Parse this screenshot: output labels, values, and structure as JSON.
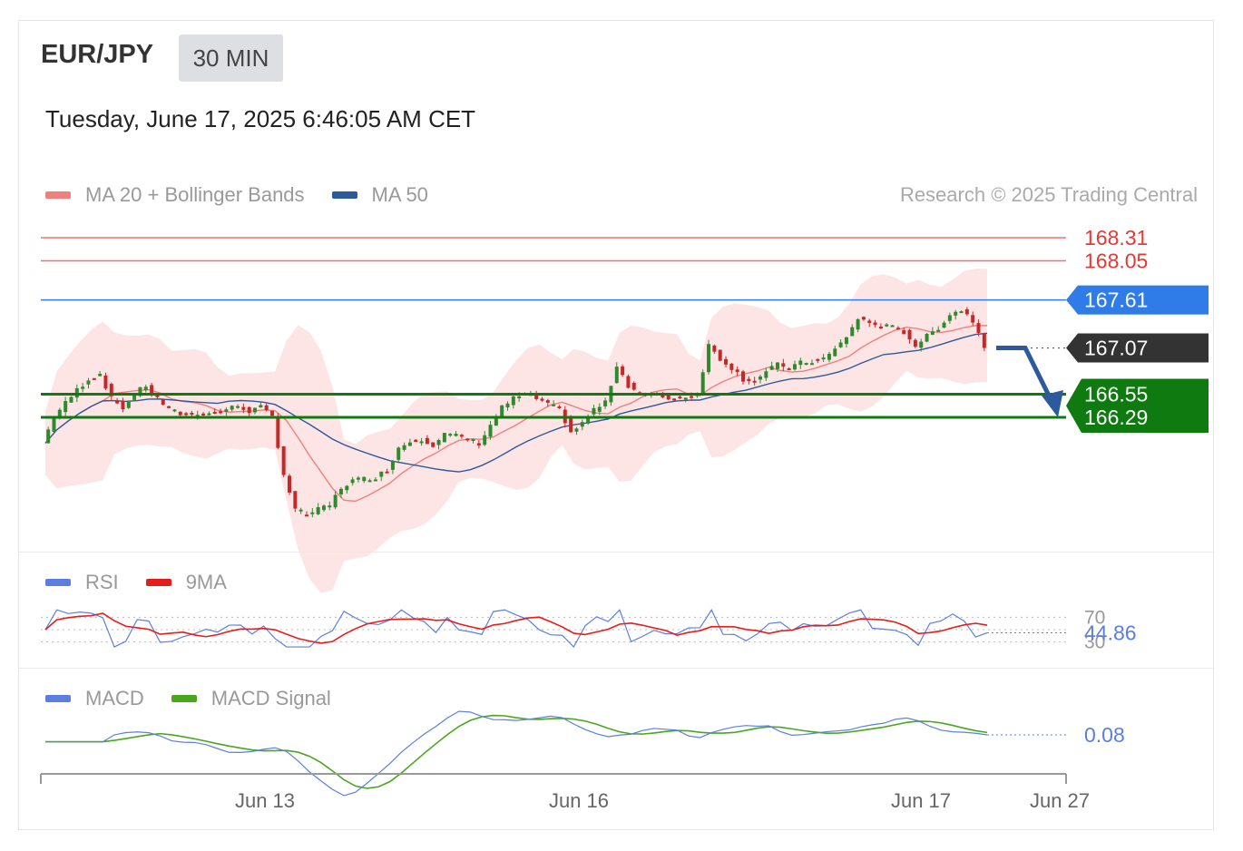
{
  "header": {
    "symbol": "EUR/JPY",
    "timeframe": "30 MIN",
    "date": "Tuesday, June 17, 2025 6:46:05 AM CET"
  },
  "legend_main": [
    {
      "label": "MA 20 + Bollinger Bands",
      "color": "#f07f7f"
    },
    {
      "label": "MA 50",
      "color": "#2c5a9c"
    }
  ],
  "credit": "Research © 2025 Trading Central",
  "legend_rsi": [
    {
      "label": "RSI",
      "color": "#5b7fe0"
    },
    {
      "label": "9MA",
      "color": "#e51c1c"
    }
  ],
  "legend_macd": [
    {
      "label": "MACD",
      "color": "#5b7fe0"
    },
    {
      "label": "MACD Signal",
      "color": "#4aa61e"
    }
  ],
  "colors": {
    "up_candle": "#2f8a2f",
    "down_candle": "#c62828",
    "bollinger_fill": "#fde0e0",
    "ma20": "#f07f7f",
    "ma50": "#2c5a9c",
    "resistance": "#f07070",
    "pivot": "#2f7be8",
    "current": "#333333",
    "support": "#0f7a0f"
  },
  "chart_data": {
    "type": "candlestick",
    "symbol": "EUR/JPY",
    "timeframe": "30 MIN",
    "x_axis_labels": [
      "Jun 13",
      "Jun 16",
      "Jun 17",
      "Jun 27"
    ],
    "levels": [
      {
        "value": 168.31,
        "label": "168.31",
        "kind": "resistance"
      },
      {
        "value": 168.05,
        "label": "168.05",
        "kind": "resistance"
      },
      {
        "value": 167.61,
        "label": "167.61",
        "kind": "pivot"
      },
      {
        "value": 167.07,
        "label": "167.07",
        "kind": "current"
      },
      {
        "value": 166.55,
        "label": "166.55",
        "kind": "support"
      },
      {
        "value": 166.29,
        "label": "166.29",
        "kind": "support"
      }
    ],
    "forecast": {
      "direction": "down",
      "from": 167.07,
      "to": 166.29
    },
    "close_series": [
      166.0,
      166.3,
      166.45,
      166.6,
      166.72,
      166.78,
      166.5,
      166.4,
      166.55,
      166.65,
      166.5,
      166.38,
      166.33,
      166.32,
      166.35,
      166.33,
      166.38,
      166.42,
      166.36,
      166.4,
      166.3,
      165.65,
      165.25,
      165.2,
      165.25,
      165.3,
      165.5,
      165.58,
      165.6,
      165.62,
      165.7,
      165.95,
      166.02,
      166.05,
      165.98,
      166.1,
      166.08,
      166.05,
      166.0,
      166.2,
      166.4,
      166.5,
      166.55,
      166.5,
      166.43,
      166.38,
      166.12,
      166.22,
      166.38,
      166.45,
      166.88,
      166.65,
      166.55,
      166.55,
      166.52,
      166.5,
      166.53,
      166.55,
      167.1,
      166.95,
      166.85,
      166.72,
      166.7,
      166.8,
      166.88,
      166.85,
      166.9,
      166.92,
      166.95,
      167.05,
      167.2,
      167.4,
      167.35,
      167.32,
      167.3,
      167.25,
      167.1,
      167.2,
      167.3,
      167.45,
      167.5,
      167.38,
      167.1
    ],
    "rsi": {
      "value": 44.86,
      "value_label": "44.86",
      "levels": [
        "70",
        "30"
      ]
    },
    "macd": {
      "value": 0.08,
      "value_label": "0.08"
    }
  }
}
